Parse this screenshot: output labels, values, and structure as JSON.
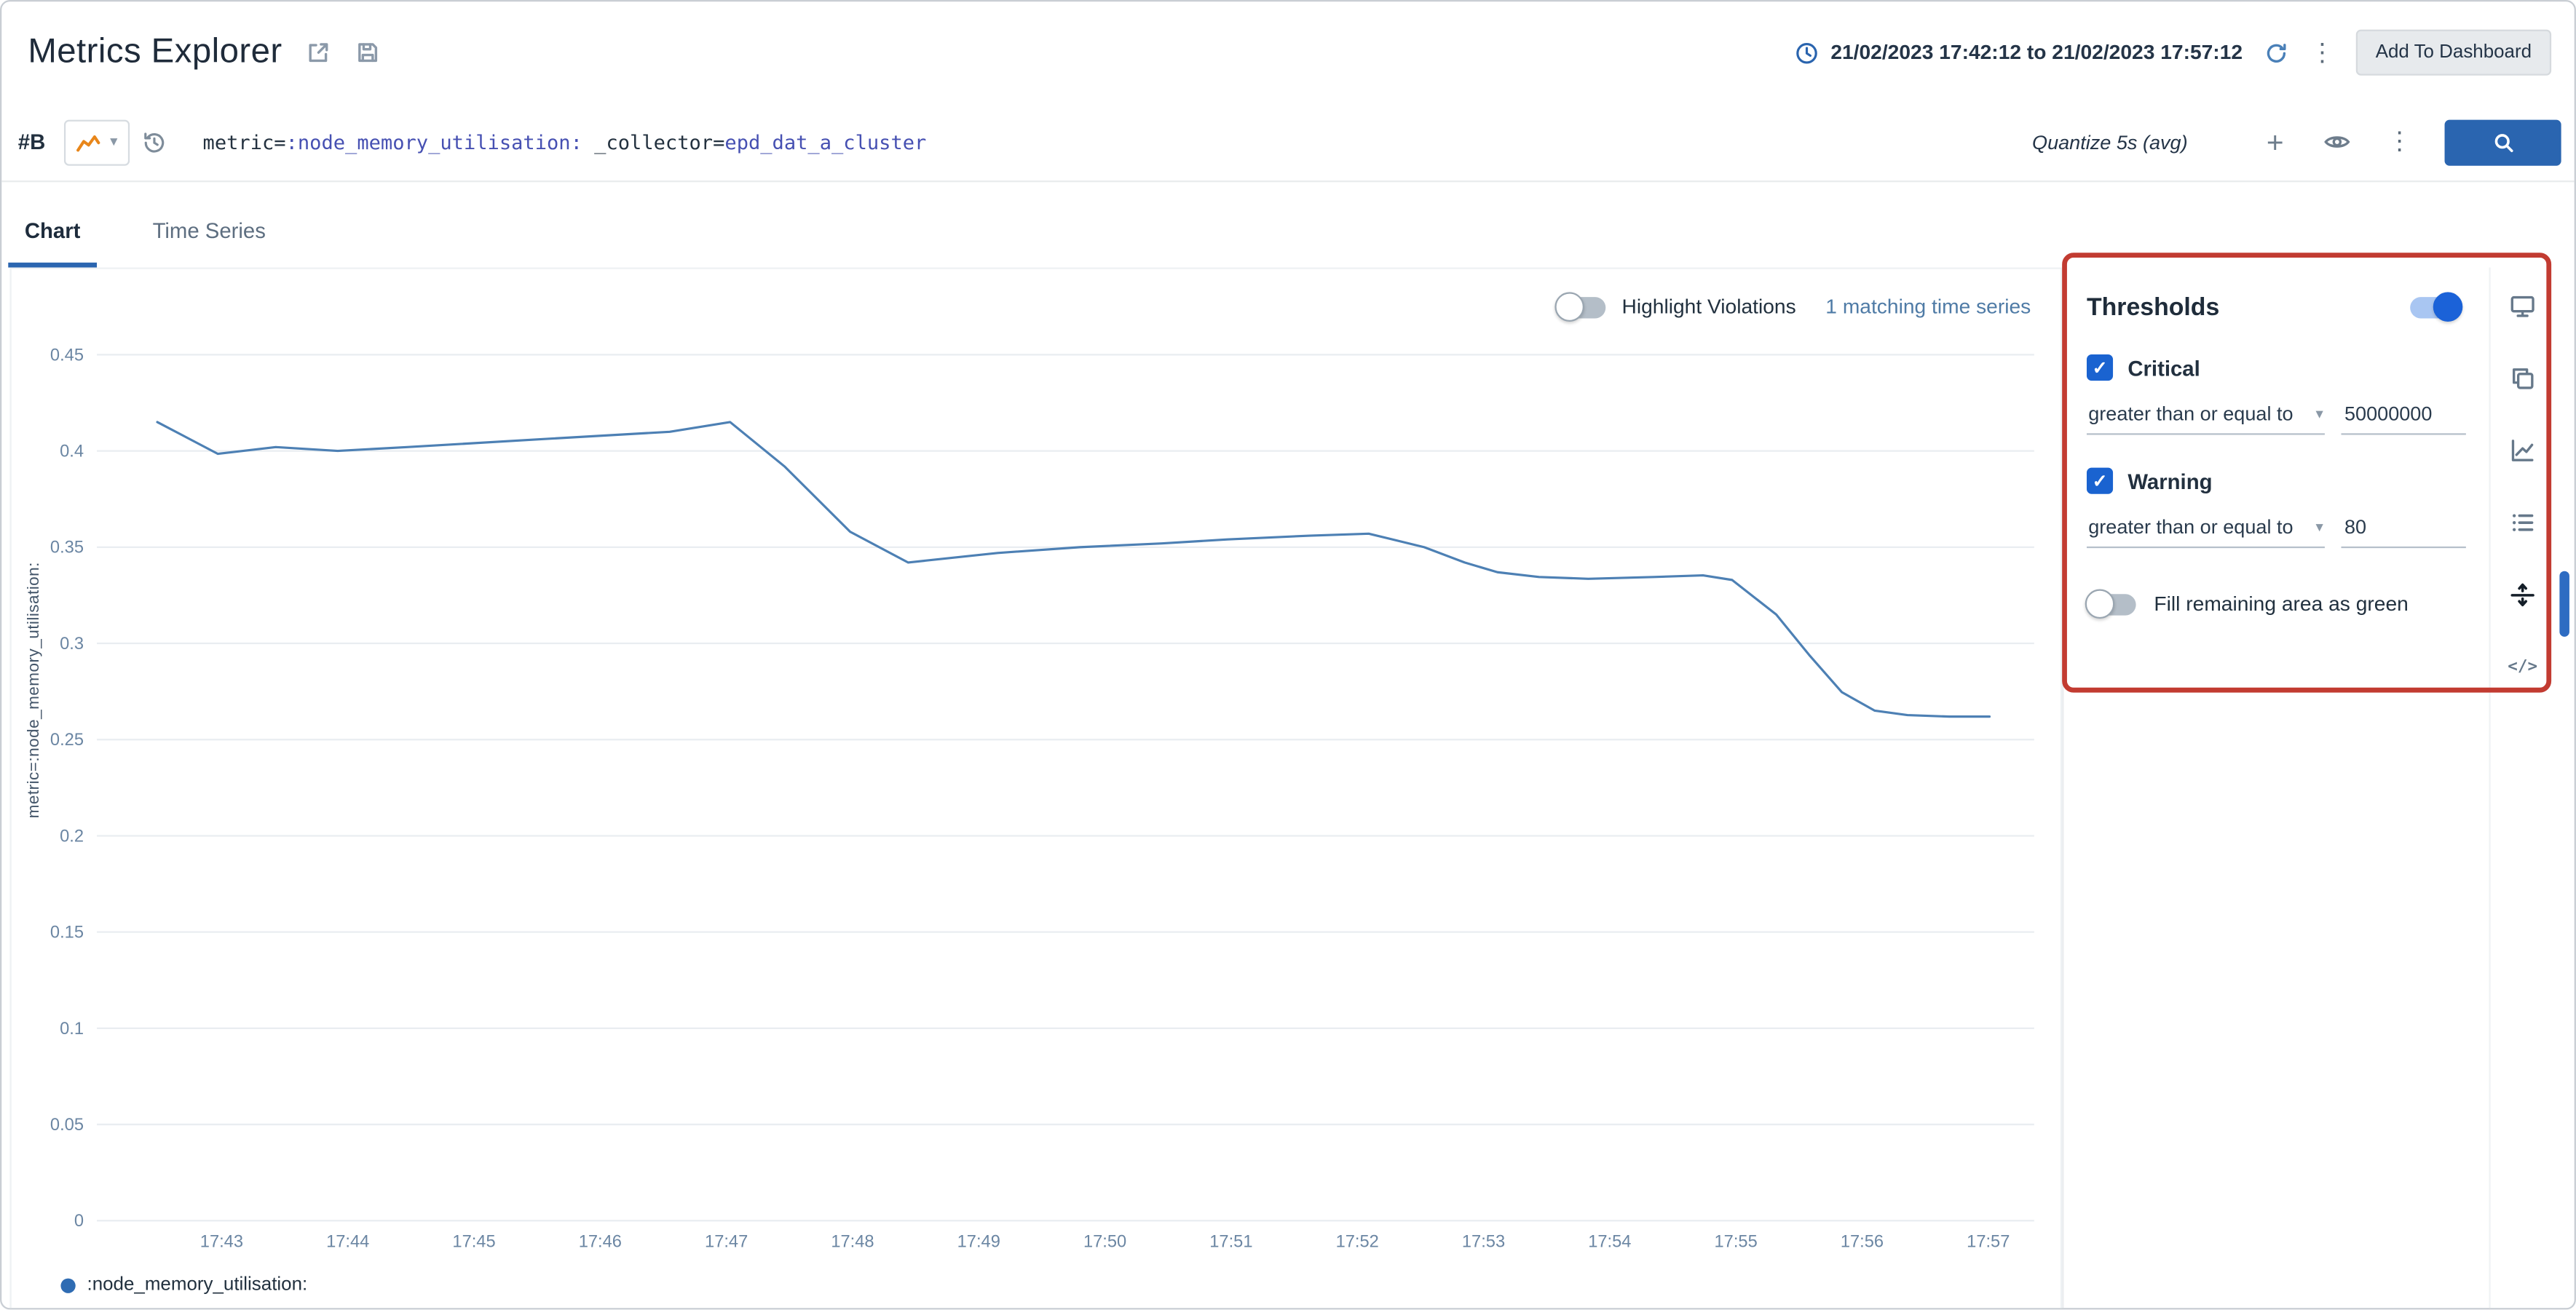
{
  "icons": {
    "kebab": "⋮",
    "caret_down": "▾",
    "check": "✓",
    "plus": "+",
    "code": "</>"
  },
  "header": {
    "title": "Metrics Explorer",
    "time_range": "21/02/2023 17:42:12 to 21/02/2023 17:57:12",
    "add_to_dashboard_label": "Add To Dashboard"
  },
  "query_bar": {
    "row_label": "#B",
    "query_segments": [
      {
        "type": "plain",
        "text": "metric="
      },
      {
        "type": "value",
        "text": ":node_memory_utilisation:"
      },
      {
        "type": "plain",
        "text": " _collector="
      },
      {
        "type": "value",
        "text": "epd_dat_a_cluster"
      }
    ],
    "quantize_label": "Quantize 5s (avg)"
  },
  "tabs": [
    {
      "label": "Chart",
      "active": true
    },
    {
      "label": "Time Series",
      "active": false
    }
  ],
  "chart_panel": {
    "highlight_violations_label": "Highlight Violations",
    "highlight_violations_enabled": false,
    "matching_series_label": "1 matching time series",
    "legend_label": ":node_memory_utilisation:"
  },
  "chart_data": {
    "type": "line",
    "title": "",
    "xlabel": "",
    "ylabel": "metric=:node_memory_utilisation:",
    "ylim": [
      0,
      0.45
    ],
    "grid": true,
    "legend_position": "bottom-left",
    "y_ticks": [
      0,
      0.05,
      0.1,
      0.15,
      0.2,
      0.25,
      0.3,
      0.35,
      0.4,
      0.45
    ],
    "x_ticks": [
      {
        "m": 43,
        "label": "17:43"
      },
      {
        "m": 44,
        "label": "17:44"
      },
      {
        "m": 45,
        "label": "17:45"
      },
      {
        "m": 46,
        "label": "17:46"
      },
      {
        "m": 47,
        "label": "17:47"
      },
      {
        "m": 48,
        "label": "17:48"
      },
      {
        "m": 49,
        "label": "17:49"
      },
      {
        "m": 50,
        "label": "17:50"
      },
      {
        "m": 51,
        "label": "17:51"
      },
      {
        "m": 52,
        "label": "17:52"
      },
      {
        "m": 53,
        "label": "17:53"
      },
      {
        "m": 54,
        "label": "17:54"
      },
      {
        "m": 55,
        "label": "17:55"
      },
      {
        "m": 56,
        "label": "17:56"
      },
      {
        "m": 57,
        "label": "17:57"
      }
    ],
    "series": [
      {
        "name": ":node_memory_utilisation:",
        "color": "#4d80b4",
        "points_minute_value": [
          [
            42.49,
            0.415
          ],
          [
            42.97,
            0.3985
          ],
          [
            43.43,
            0.402
          ],
          [
            43.92,
            0.4
          ],
          [
            44.47,
            0.402
          ],
          [
            45.51,
            0.406
          ],
          [
            46.55,
            0.41
          ],
          [
            47.03,
            0.415
          ],
          [
            47.46,
            0.392
          ],
          [
            47.98,
            0.358
          ],
          [
            48.44,
            0.342
          ],
          [
            49.15,
            0.347
          ],
          [
            49.8,
            0.35
          ],
          [
            50.45,
            0.352
          ],
          [
            50.97,
            0.354
          ],
          [
            51.62,
            0.356
          ],
          [
            52.09,
            0.357
          ],
          [
            52.53,
            0.35
          ],
          [
            52.85,
            0.342
          ],
          [
            53.11,
            0.337
          ],
          [
            53.44,
            0.3345
          ],
          [
            53.83,
            0.3336
          ],
          [
            54.35,
            0.3345
          ],
          [
            54.74,
            0.3354
          ],
          [
            54.97,
            0.333
          ],
          [
            55.32,
            0.315
          ],
          [
            55.58,
            0.294
          ],
          [
            55.84,
            0.2746
          ],
          [
            56.1,
            0.265
          ],
          [
            56.36,
            0.2627
          ],
          [
            56.69,
            0.262
          ],
          [
            57.01,
            0.262
          ]
        ]
      }
    ]
  },
  "thresholds_panel": {
    "title": "Thresholds",
    "enabled": true,
    "critical": {
      "label": "Critical",
      "checked": true,
      "condition": "greater than or equal to",
      "value": "50000000"
    },
    "warning": {
      "label": "Warning",
      "checked": true,
      "condition": "greater than or equal to",
      "value": "80"
    },
    "fill_label": "Fill remaining area as green",
    "fill_enabled": false
  },
  "colors": {
    "accent_blue": "#2a65b0",
    "toggle_blue": "#1b62d8",
    "line_blue": "#4d80b4",
    "annotation_red": "#c23b31",
    "query_value_blue": "#4650b2",
    "axis_label": "#6b86a3"
  }
}
